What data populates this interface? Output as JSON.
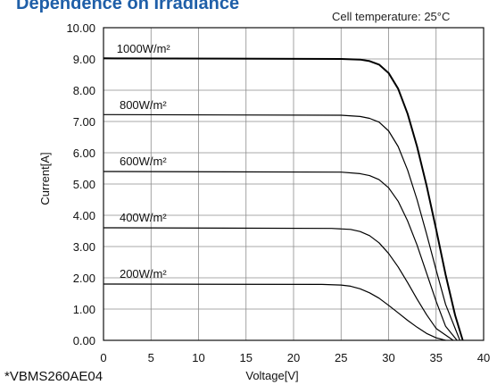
{
  "chart_data": {
    "type": "line",
    "title": "Dependence on Irradiance",
    "subtitle": "Cell temperature: 25°C",
    "xlabel": "Voltage[V]",
    "ylabel": "Current[A]",
    "footnote": "*VBMS260AE04",
    "xlim": [
      0,
      40
    ],
    "ylim": [
      0,
      10
    ],
    "xticks": [
      "0",
      "5",
      "10",
      "15",
      "20",
      "25",
      "30",
      "35",
      "40"
    ],
    "yticks": [
      "0.00",
      "1.00",
      "2.00",
      "3.00",
      "4.00",
      "5.00",
      "6.00",
      "7.00",
      "8.00",
      "9.00",
      "10.00"
    ],
    "grid": true,
    "series": [
      {
        "name": "1000W/m²",
        "points": [
          [
            0,
            9.02
          ],
          [
            25,
            9.0
          ],
          [
            27,
            8.98
          ],
          [
            28,
            8.93
          ],
          [
            29,
            8.82
          ],
          [
            30,
            8.55
          ],
          [
            31,
            8.05
          ],
          [
            32,
            7.25
          ],
          [
            33,
            6.2
          ],
          [
            34,
            4.95
          ],
          [
            35,
            3.55
          ],
          [
            36,
            2.1
          ],
          [
            37,
            0.8
          ],
          [
            37.8,
            0.0
          ]
        ]
      },
      {
        "name": "800W/m²",
        "points": [
          [
            0,
            7.22
          ],
          [
            25,
            7.2
          ],
          [
            27,
            7.16
          ],
          [
            28,
            7.1
          ],
          [
            29,
            6.98
          ],
          [
            30,
            6.7
          ],
          [
            31,
            6.2
          ],
          [
            32,
            5.45
          ],
          [
            33,
            4.5
          ],
          [
            34,
            3.4
          ],
          [
            35,
            2.25
          ],
          [
            36,
            1.15
          ],
          [
            37.5,
            0.0
          ]
        ]
      },
      {
        "name": "600W/m²",
        "points": [
          [
            0,
            5.4
          ],
          [
            25,
            5.38
          ],
          [
            27,
            5.33
          ],
          [
            28,
            5.27
          ],
          [
            29,
            5.14
          ],
          [
            30,
            4.88
          ],
          [
            31,
            4.45
          ],
          [
            32,
            3.82
          ],
          [
            33,
            3.05
          ],
          [
            34,
            2.15
          ],
          [
            35,
            1.25
          ],
          [
            36,
            0.45
          ],
          [
            37.2,
            0.0
          ]
        ]
      },
      {
        "name": "400W/m²",
        "points": [
          [
            0,
            3.6
          ],
          [
            24,
            3.58
          ],
          [
            26,
            3.55
          ],
          [
            27,
            3.48
          ],
          [
            28,
            3.35
          ],
          [
            29,
            3.12
          ],
          [
            30,
            2.78
          ],
          [
            31,
            2.35
          ],
          [
            32,
            1.85
          ],
          [
            33,
            1.32
          ],
          [
            34,
            0.82
          ],
          [
            35,
            0.38
          ],
          [
            36.8,
            0.0
          ]
        ]
      },
      {
        "name": "200W/m²",
        "points": [
          [
            0,
            1.8
          ],
          [
            23,
            1.79
          ],
          [
            25,
            1.77
          ],
          [
            26,
            1.73
          ],
          [
            27,
            1.65
          ],
          [
            28,
            1.52
          ],
          [
            29,
            1.35
          ],
          [
            30,
            1.12
          ],
          [
            31,
            0.88
          ],
          [
            32,
            0.64
          ],
          [
            33,
            0.42
          ],
          [
            34,
            0.22
          ],
          [
            35,
            0.08
          ],
          [
            36,
            0.0
          ]
        ]
      }
    ],
    "series_label_values": [
      {
        "name": "1000W/m²",
        "x": 1.2,
        "y": 9.0
      },
      {
        "name": "800W/m²",
        "x": 1.5,
        "y": 7.2
      },
      {
        "name": "600W/m²",
        "x": 1.5,
        "y": 5.4
      },
      {
        "name": "400W/m²",
        "x": 1.5,
        "y": 3.6
      },
      {
        "name": "200W/m²",
        "x": 1.5,
        "y": 1.8
      }
    ]
  }
}
